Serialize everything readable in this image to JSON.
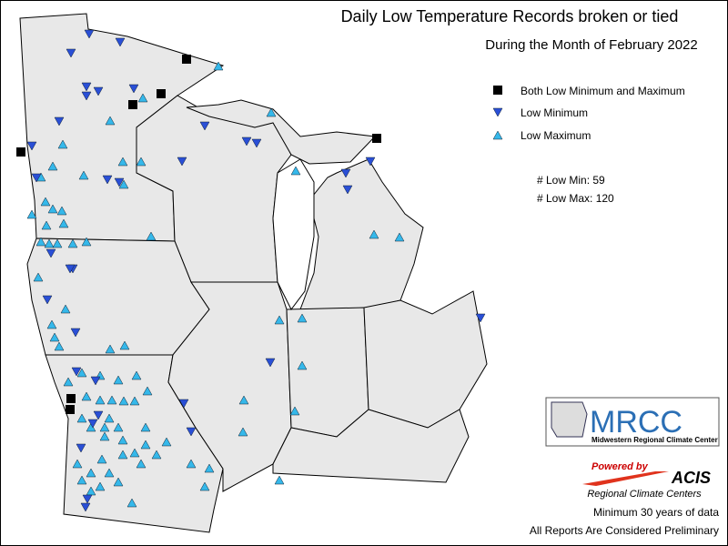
{
  "title": "Daily Low Temperature Records broken or tied",
  "subtitle": "During the Month of February 2022",
  "legend": [
    {
      "label": "Both Low Minimum and Maximum"
    },
    {
      "label": "Low Minimum"
    },
    {
      "label": "Low Maximum"
    }
  ],
  "stats": [
    {
      "label": "# Low Min: 59"
    },
    {
      "label": "# Low Max: 120"
    }
  ],
  "logos": {
    "mrcc": "MRCC",
    "mrcc_name": "Midwestern Regional Climate Center",
    "powered": "Powered by",
    "acis": "ACIS",
    "rcc": "Regional Climate Centers"
  },
  "notes": [
    "Minimum 30 years of data",
    "All Reports Are Considered Preliminary"
  ]
}
